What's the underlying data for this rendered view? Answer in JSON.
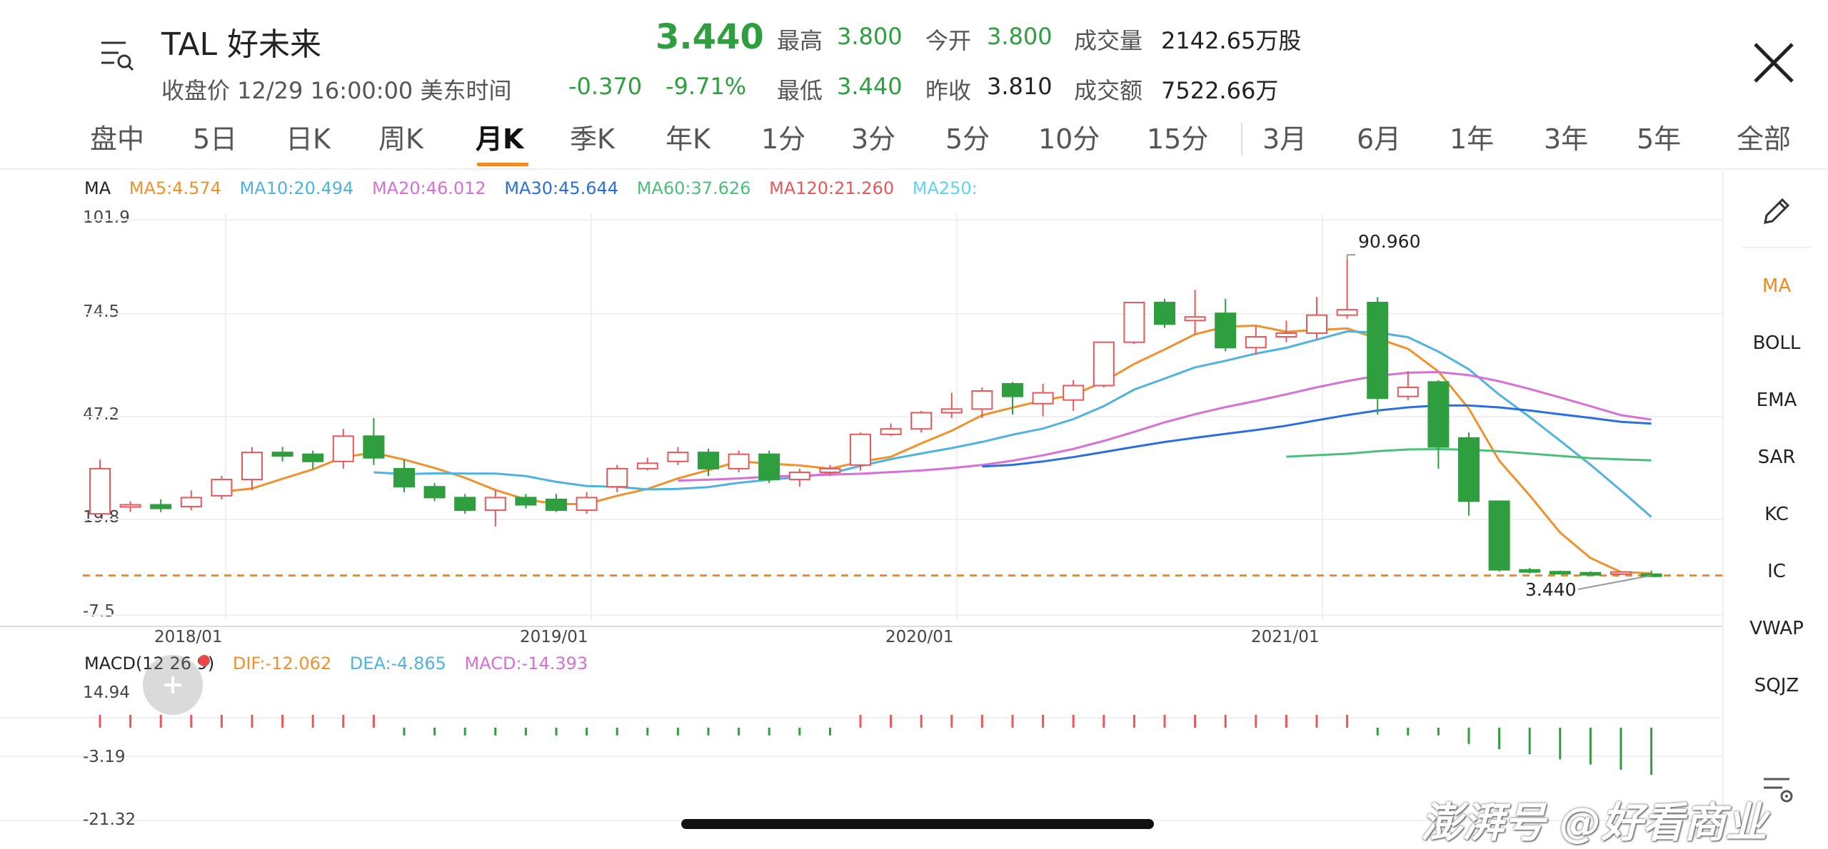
{
  "header": {
    "symbol_name": "TAL 好未来",
    "price": "3.440",
    "status": "收盘价 12/29 16:00:00 美东时间",
    "change": "-0.370",
    "change_pct": "-9.71%",
    "high_label": "最高",
    "high": "3.800",
    "open_label": "今开",
    "open": "3.800",
    "volume_label": "成交量",
    "volume": "2142.65万股",
    "low_label": "最低",
    "low": "3.440",
    "prev_label": "昨收",
    "prev": "3.810",
    "turnover_label": "成交额",
    "turnover": "7522.66万"
  },
  "tabs": [
    "盘中",
    "5日",
    "日K",
    "周K",
    "月K",
    "季K",
    "年K",
    "1分",
    "3分",
    "5分",
    "10分",
    "15分",
    "3月",
    "6月",
    "1年",
    "3年",
    "5年",
    "全部"
  ],
  "active_tab": "月K",
  "ma_legend": [
    {
      "text": "MA",
      "color": "#222222"
    },
    {
      "text": "MA5:4.574",
      "color": "#f0912c"
    },
    {
      "text": "MA10:20.494",
      "color": "#4fb2e0"
    },
    {
      "text": "MA20:46.012",
      "color": "#d66fd6"
    },
    {
      "text": "MA30:45.644",
      "color": "#2a6fdb"
    },
    {
      "text": "MA60:37.626",
      "color": "#4cc07a"
    },
    {
      "text": "MA120:21.260",
      "color": "#e8585a"
    },
    {
      "text": "MA250:",
      "color": "#5fd3f0"
    }
  ],
  "price_axis": [
    "101.9",
    "74.5",
    "47.2",
    "19.8",
    "-7.5"
  ],
  "time_axis": [
    "2018/01",
    "2019/01",
    "2020/01",
    "2021/01"
  ],
  "annotations": {
    "high": "90.960",
    "last": "3.440"
  },
  "macd_legend": [
    {
      "text": "MACD(12 26 9)",
      "color": "#222222"
    },
    {
      "text": "DIF:-12.062",
      "color": "#f0912c"
    },
    {
      "text": "DEA:-4.865",
      "color": "#4fb2e0"
    },
    {
      "text": "MACD:-14.393",
      "color": "#d66fd6"
    }
  ],
  "macd_axis": [
    "14.94",
    "-3.19",
    "-21.32"
  ],
  "indicators": [
    "MA",
    "BOLL",
    "EMA",
    "SAR",
    "KC",
    "IC",
    "VWAP",
    "SQJZ"
  ],
  "active_indicator": "MA",
  "colors": {
    "up": "#e8585a",
    "down": "#2e9e3e",
    "accent": "#f08a24"
  },
  "icons": {
    "menu": "menu-search-icon",
    "close": "close-icon",
    "edit": "pencil-icon",
    "add": "plus-icon",
    "settings": "settings-icon"
  },
  "watermark": "澎湃号 @好看商业",
  "chart_data": {
    "type": "candlestick",
    "ylim": [
      -7.5,
      101.9
    ],
    "candles": [
      [
        20.5,
        33.0,
        21.0,
        35.5
      ],
      [
        22.5,
        23.0,
        21.0,
        24.0
      ],
      [
        23.0,
        22.0,
        21.0,
        24.5
      ],
      [
        22.5,
        25.0,
        21.5,
        27.0
      ],
      [
        25.5,
        30.0,
        24.5,
        31.0
      ],
      [
        30.0,
        37.5,
        27.0,
        39.0
      ],
      [
        37.5,
        36.5,
        35.0,
        39.0
      ],
      [
        37.0,
        35.0,
        33.0,
        38.0
      ],
      [
        35.0,
        42.0,
        33.0,
        44.0
      ],
      [
        42.0,
        36.0,
        34.0,
        47.0
      ],
      [
        33.0,
        28.0,
        26.5,
        35.5
      ],
      [
        28.0,
        25.0,
        24.0,
        29.0
      ],
      [
        25.0,
        21.5,
        20.5,
        26.0
      ],
      [
        21.5,
        25.0,
        17.0,
        27.0
      ],
      [
        25.0,
        23.0,
        22.0,
        26.0
      ],
      [
        24.5,
        21.5,
        21.0,
        26.0
      ],
      [
        21.5,
        25.0,
        20.5,
        26.5
      ],
      [
        28.0,
        33.0,
        26.5,
        34.0
      ],
      [
        33.0,
        34.5,
        32.5,
        36.0
      ],
      [
        35.0,
        37.5,
        34.0,
        39.0
      ],
      [
        37.5,
        33.0,
        31.0,
        38.5
      ],
      [
        33.0,
        37.0,
        32.0,
        38.0
      ],
      [
        37.0,
        30.0,
        29.0,
        38.0
      ],
      [
        30.0,
        32.0,
        28.0,
        33.0
      ],
      [
        32.0,
        33.0,
        31.0,
        34.0
      ],
      [
        34.0,
        42.5,
        32.5,
        43.0
      ],
      [
        42.5,
        44.0,
        42.0,
        45.5
      ],
      [
        44.0,
        48.5,
        43.0,
        49.0
      ],
      [
        48.5,
        49.5,
        47.0,
        54.0
      ],
      [
        49.5,
        54.5,
        47.0,
        55.5
      ],
      [
        56.5,
        53.0,
        48.0,
        57.0
      ],
      [
        51.0,
        54.0,
        47.5,
        56.5
      ],
      [
        52.0,
        56.0,
        49.0,
        57.5
      ],
      [
        56.0,
        68.0,
        55.5,
        68.0
      ],
      [
        68.0,
        79.0,
        67.5,
        79.0
      ],
      [
        79.0,
        73.0,
        72.0,
        80.0
      ],
      [
        74.0,
        75.0,
        70.0,
        82.5
      ],
      [
        76.0,
        66.5,
        65.5,
        80.0
      ],
      [
        66.5,
        69.5,
        64.5,
        72.5
      ],
      [
        69.5,
        70.5,
        68.0,
        74.0
      ],
      [
        70.5,
        75.5,
        69.0,
        80.5
      ],
      [
        75.5,
        77.0,
        74.5,
        91.0
      ],
      [
        79.0,
        52.5,
        48.0,
        80.5
      ],
      [
        53.0,
        55.5,
        52.0,
        60.0
      ],
      [
        57.0,
        39.0,
        33.0,
        57.5
      ],
      [
        41.5,
        24.0,
        20.0,
        43.0
      ],
      [
        24.0,
        5.0,
        4.5,
        24.0
      ],
      [
        5.0,
        4.5,
        4.0,
        5.5
      ],
      [
        4.5,
        4.0,
        3.8,
        4.8
      ],
      [
        4.2,
        3.9,
        3.7,
        4.6
      ],
      [
        3.8,
        4.4,
        3.6,
        4.6
      ],
      [
        3.8,
        3.44,
        3.44,
        4.8
      ]
    ],
    "macd_hist_dir": [
      1,
      1,
      1,
      1,
      1,
      1,
      1,
      1,
      1,
      1,
      -1,
      -1,
      -1,
      -1,
      -1,
      -1,
      -1,
      -1,
      -1,
      -1,
      -1,
      -1,
      -1,
      -1,
      -1,
      1,
      1,
      1,
      1,
      1,
      1,
      1,
      1,
      1,
      1,
      1,
      1,
      1,
      1,
      1,
      1,
      1,
      -1,
      -1,
      -1,
      -1,
      -1,
      -1,
      -1,
      -1,
      -1,
      -1
    ]
  }
}
